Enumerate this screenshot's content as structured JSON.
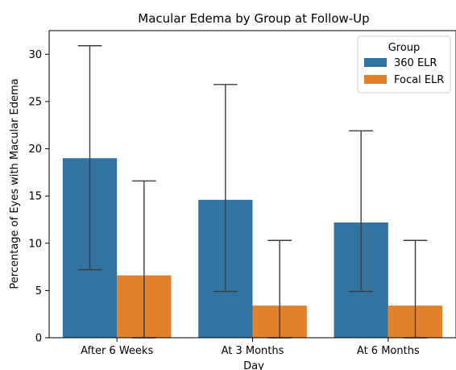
{
  "chart_data": {
    "type": "bar",
    "title": "Macular Edema by Group at Follow-Up",
    "xlabel": "Day",
    "ylabel": "Percentage of Eyes with Macular Edema",
    "categories": [
      "After 6 Weeks",
      "At 3 Months",
      "At 6 Months"
    ],
    "ylim": [
      0,
      32.5
    ],
    "yticks": [
      0,
      5,
      10,
      15,
      20,
      25,
      30
    ],
    "legend": {
      "title": "Group",
      "position": "top-right"
    },
    "grid": false,
    "series": [
      {
        "name": "360 ELR",
        "color": "#3274a1",
        "values": [
          19.0,
          14.6,
          12.2
        ],
        "ci_low": [
          7.2,
          4.9,
          4.9
        ],
        "ci_high": [
          30.9,
          26.8,
          21.9
        ]
      },
      {
        "name": "Focal ELR",
        "color": "#e1812c",
        "values": [
          6.6,
          3.4,
          3.4
        ],
        "ci_low": [
          0.0,
          0.0,
          0.0
        ],
        "ci_high": [
          16.6,
          10.3,
          10.3
        ]
      }
    ]
  }
}
